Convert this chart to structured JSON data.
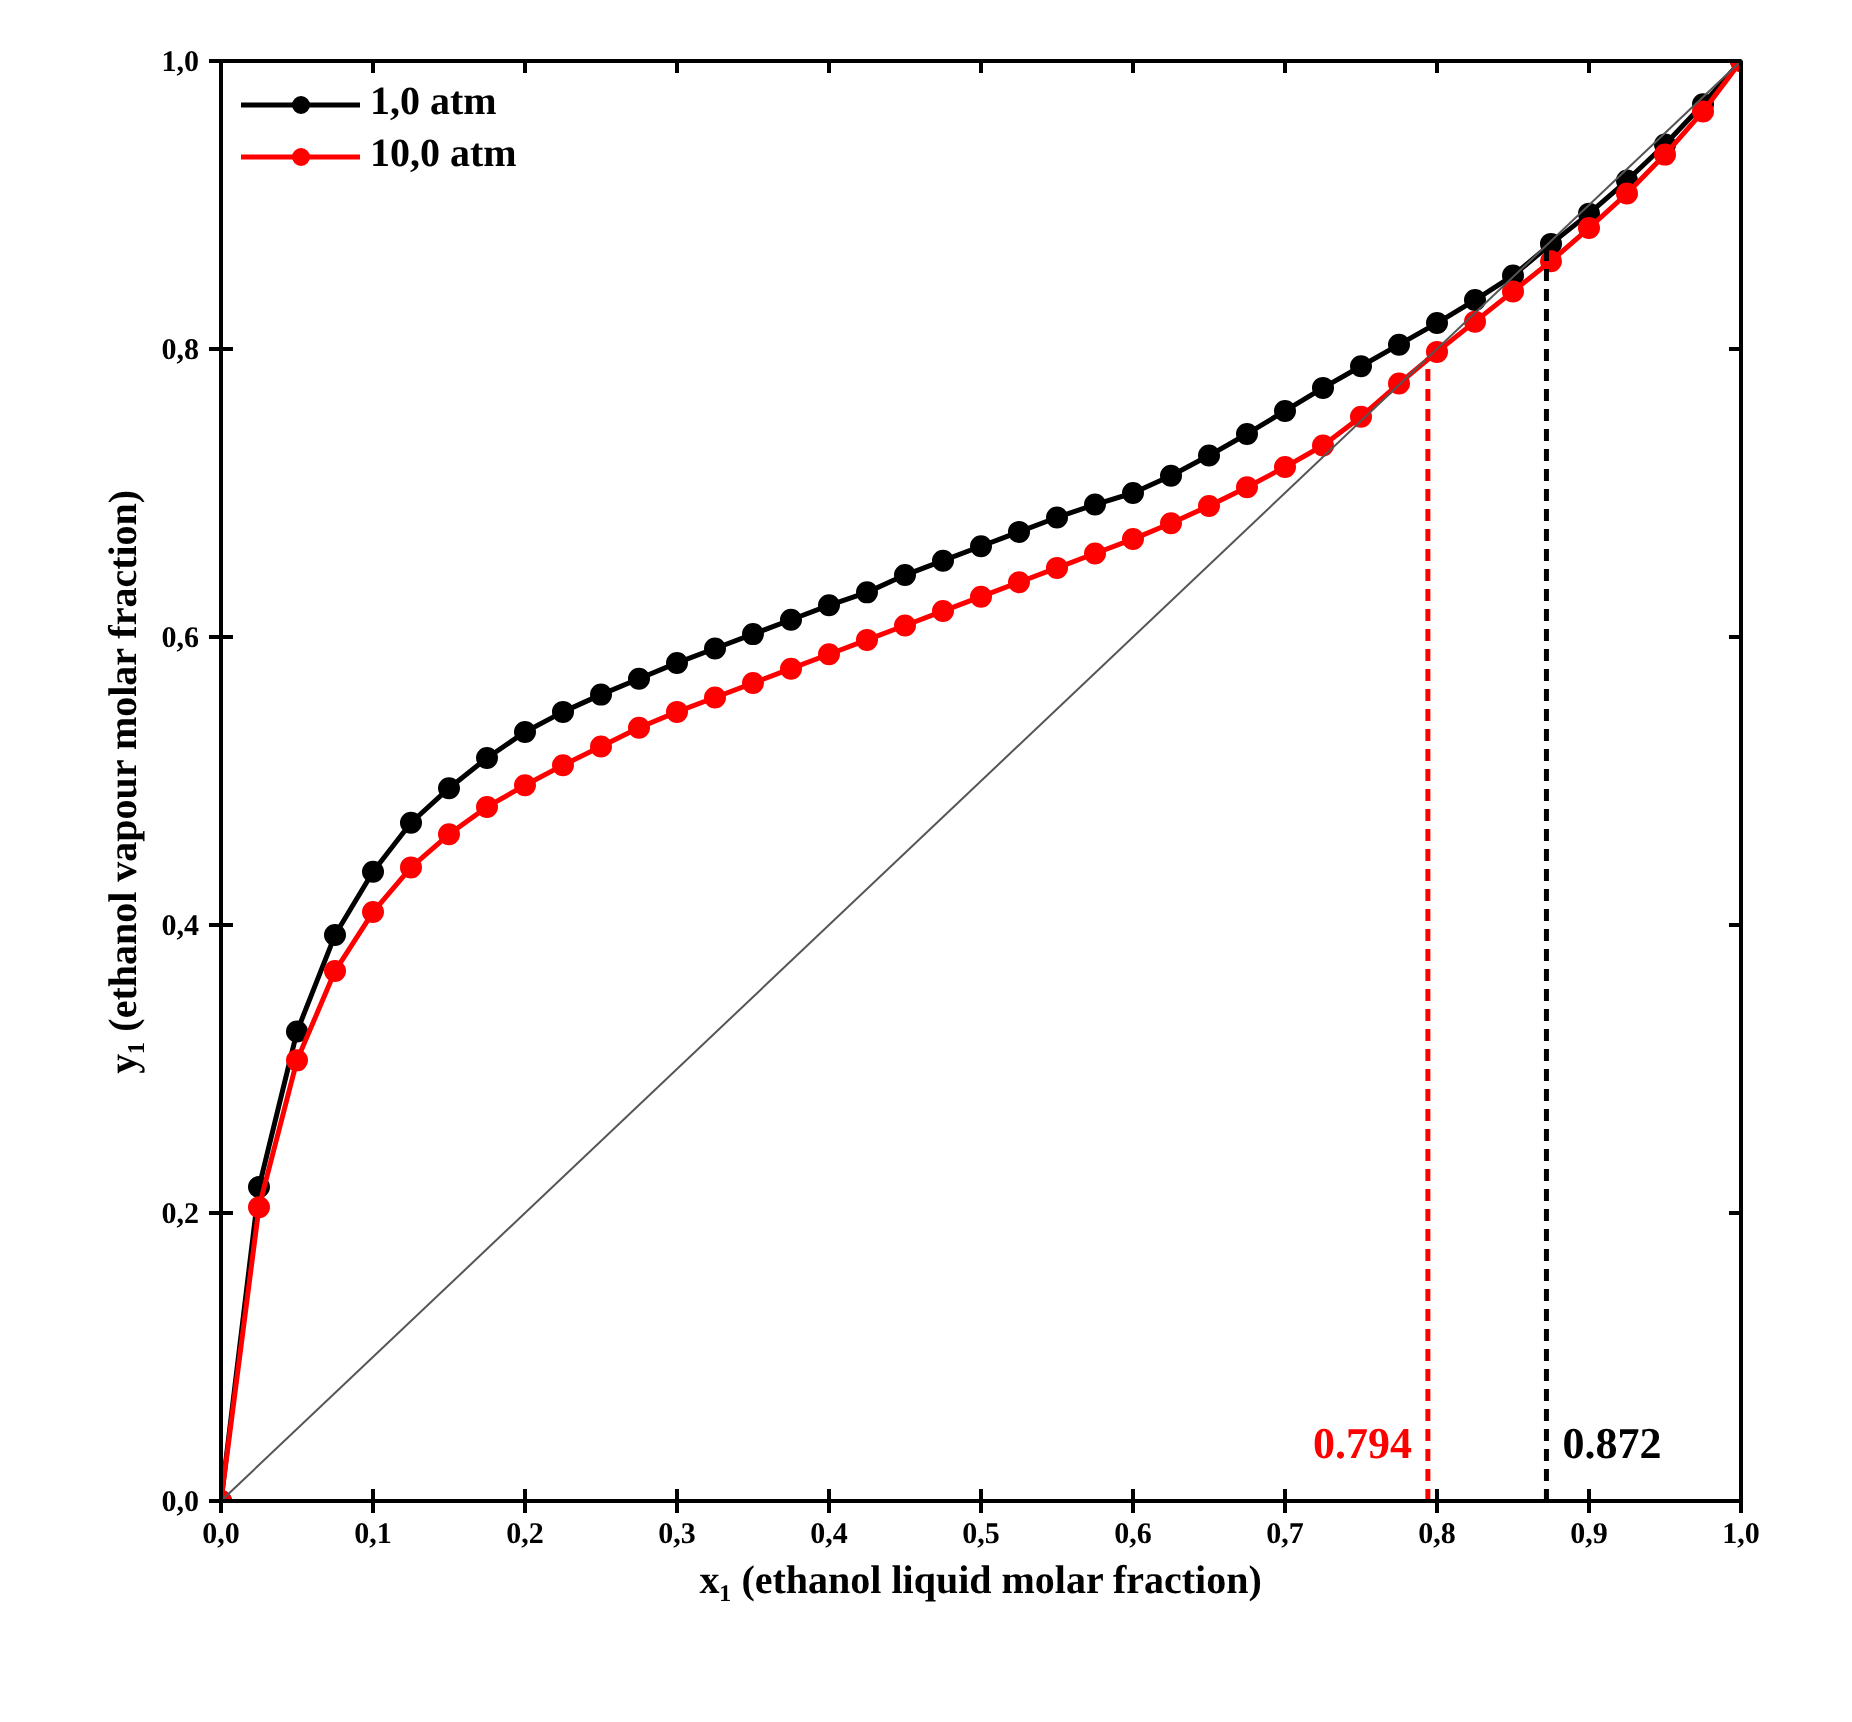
{
  "chart_data": {
    "type": "line",
    "xlabel": "x₁ (ethanol liquid molar fraction)",
    "ylabel": "y₁ (ethanol vapour molar fraction)",
    "x": [
      0,
      0.025,
      0.05,
      0.075,
      0.1,
      0.125,
      0.15,
      0.175,
      0.2,
      0.225,
      0.25,
      0.275,
      0.3,
      0.325,
      0.35,
      0.375,
      0.4,
      0.425,
      0.45,
      0.475,
      0.5,
      0.525,
      0.55,
      0.575,
      0.6,
      0.625,
      0.65,
      0.675,
      0.7,
      0.725,
      0.75,
      0.775,
      0.8,
      0.825,
      0.85,
      0.875,
      0.9,
      0.925,
      0.95,
      0.975,
      1.0
    ],
    "series": [
      {
        "name": "1,0 atm",
        "color": "#000000",
        "marker": "circle",
        "values": [
          0,
          0.218,
          0.326,
          0.393,
          0.437,
          0.471,
          0.495,
          0.516,
          0.534,
          0.548,
          0.56,
          0.571,
          0.582,
          0.592,
          0.602,
          0.612,
          0.622,
          0.631,
          0.643,
          0.653,
          0.663,
          0.673,
          0.683,
          0.692,
          0.7,
          0.712,
          0.726,
          0.741,
          0.757,
          0.773,
          0.788,
          0.803,
          0.818,
          0.834,
          0.851,
          0.873,
          0.894,
          0.917,
          0.942,
          0.97,
          1.0
        ]
      },
      {
        "name": "10,0 atm",
        "color": "#ff0000",
        "marker": "circle",
        "values": [
          0,
          0.204,
          0.306,
          0.368,
          0.409,
          0.44,
          0.463,
          0.482,
          0.497,
          0.511,
          0.524,
          0.537,
          0.548,
          0.558,
          0.568,
          0.578,
          0.588,
          0.598,
          0.608,
          0.618,
          0.628,
          0.638,
          0.648,
          0.658,
          0.668,
          0.679,
          0.691,
          0.704,
          0.718,
          0.733,
          0.753,
          0.776,
          0.798,
          0.819,
          0.84,
          0.861,
          0.884,
          0.908,
          0.935,
          0.965,
          1.0
        ]
      },
      {
        "type": "line",
        "color": "#555555",
        "x": [
          0,
          1
        ],
        "values": [
          0,
          1
        ]
      }
    ],
    "xlim": [
      0,
      1
    ],
    "ylim": [
      0,
      1
    ],
    "xticks": [
      {
        "value": 0,
        "label": "0,0"
      },
      {
        "value": 0.1,
        "label": "0,1"
      },
      {
        "value": 0.2,
        "label": "0,2"
      },
      {
        "value": 0.3,
        "label": "0,3"
      },
      {
        "value": 0.4,
        "label": "0,4"
      },
      {
        "value": 0.5,
        "label": "0,5"
      },
      {
        "value": 0.6,
        "label": "0,6"
      },
      {
        "value": 0.7,
        "label": "0,7"
      },
      {
        "value": 0.8,
        "label": "0,8"
      },
      {
        "value": 0.9,
        "label": "0,9"
      },
      {
        "value": 1,
        "label": "1,0"
      }
    ],
    "yticks": [
      {
        "value": 0,
        "label": "0,0"
      },
      {
        "value": 0.2,
        "label": "0,2"
      },
      {
        "value": 0.4,
        "label": "0,4"
      },
      {
        "value": 0.6,
        "label": "0,6"
      },
      {
        "value": 0.8,
        "label": "0,8"
      },
      {
        "value": 1,
        "label": "1,0"
      }
    ],
    "ref_lines": [
      {
        "axis": "x",
        "value": 0.794,
        "label": "0.794",
        "color": "#ff0000",
        "line_style": "dashed"
      },
      {
        "axis": "x",
        "value": 0.872,
        "label": "0.872",
        "color": "#000000",
        "line_style": "dashed"
      }
    ],
    "grid": false,
    "legend": "top left",
    "line_style": "solid"
  }
}
